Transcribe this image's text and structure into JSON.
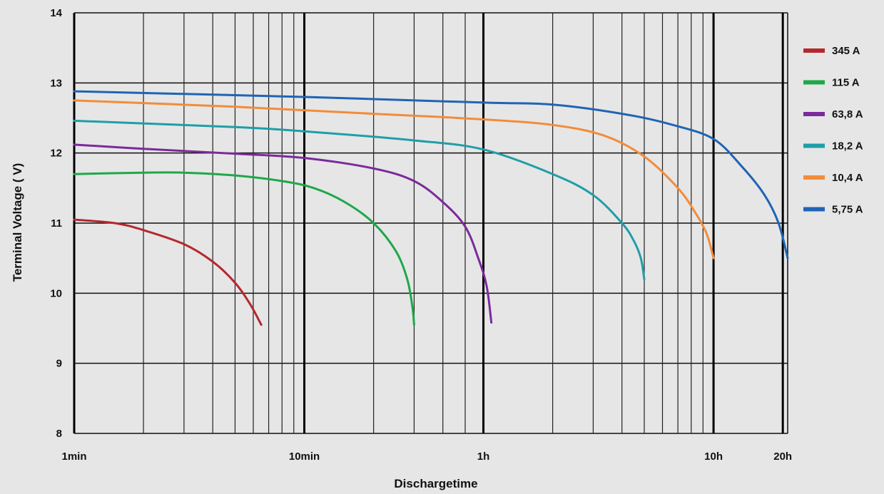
{
  "chart_data": {
    "type": "line",
    "title": "",
    "xlabel": "Dischargetime",
    "ylabel": "Terminal Voltage ( V)",
    "x_unit": "minutes",
    "x_scale": "log",
    "xlim": [
      1,
      1260
    ],
    "ylim": [
      8,
      14
    ],
    "grid": true,
    "legend_position": "right",
    "y_ticks": [
      8,
      9,
      10,
      11,
      12,
      13,
      14
    ],
    "x_tick_labels": [
      {
        "value": 1,
        "label": "1min"
      },
      {
        "value": 10,
        "label": "10min"
      },
      {
        "value": 60,
        "label": "1h"
      },
      {
        "value": 600,
        "label": "10h"
      },
      {
        "value": 1200,
        "label": "20h"
      }
    ],
    "series": [
      {
        "name": "345 A",
        "color": "#b5282d",
        "points": [
          [
            1,
            11.05
          ],
          [
            1.5,
            11.0
          ],
          [
            2,
            10.9
          ],
          [
            3,
            10.7
          ],
          [
            4,
            10.45
          ],
          [
            5,
            10.15
          ],
          [
            5.8,
            9.85
          ],
          [
            6.5,
            9.55
          ]
        ]
      },
      {
        "name": "115 A",
        "color": "#1ea84a",
        "points": [
          [
            1,
            11.7
          ],
          [
            2,
            11.72
          ],
          [
            3,
            11.72
          ],
          [
            5,
            11.68
          ],
          [
            8,
            11.6
          ],
          [
            11,
            11.5
          ],
          [
            15,
            11.3
          ],
          [
            20,
            11.0
          ],
          [
            25,
            10.6
          ],
          [
            28,
            10.2
          ],
          [
            29.5,
            9.8
          ],
          [
            30,
            9.55
          ]
        ]
      },
      {
        "name": "63,8 A",
        "color": "#7a2a9c",
        "points": [
          [
            1,
            12.12
          ],
          [
            2,
            12.06
          ],
          [
            5,
            11.99
          ],
          [
            10,
            11.93
          ],
          [
            20,
            11.78
          ],
          [
            30,
            11.6
          ],
          [
            40,
            11.3
          ],
          [
            50,
            10.95
          ],
          [
            57,
            10.5
          ],
          [
            62,
            10.1
          ],
          [
            65,
            9.58
          ]
        ]
      },
      {
        "name": "18,2 A",
        "color": "#1f9ea8",
        "points": [
          [
            1,
            12.46
          ],
          [
            5,
            12.37
          ],
          [
            10,
            12.31
          ],
          [
            30,
            12.18
          ],
          [
            60,
            12.05
          ],
          [
            120,
            11.7
          ],
          [
            180,
            11.4
          ],
          [
            240,
            11.0
          ],
          [
            270,
            10.75
          ],
          [
            290,
            10.5
          ],
          [
            300,
            10.2
          ]
        ]
      },
      {
        "name": "10,4 A",
        "color": "#f28c3a",
        "points": [
          [
            1,
            12.75
          ],
          [
            5,
            12.66
          ],
          [
            20,
            12.56
          ],
          [
            60,
            12.48
          ],
          [
            120,
            12.4
          ],
          [
            200,
            12.25
          ],
          [
            300,
            11.95
          ],
          [
            420,
            11.5
          ],
          [
            500,
            11.15
          ],
          [
            560,
            10.85
          ],
          [
            600,
            10.5
          ]
        ]
      },
      {
        "name": "5,75 A",
        "color": "#1f64b4",
        "points": [
          [
            1,
            12.88
          ],
          [
            10,
            12.8
          ],
          [
            60,
            12.72
          ],
          [
            120,
            12.69
          ],
          [
            250,
            12.55
          ],
          [
            400,
            12.4
          ],
          [
            600,
            12.2
          ],
          [
            800,
            11.8
          ],
          [
            1000,
            11.4
          ],
          [
            1150,
            11.0
          ],
          [
            1260,
            10.5
          ]
        ]
      }
    ]
  }
}
